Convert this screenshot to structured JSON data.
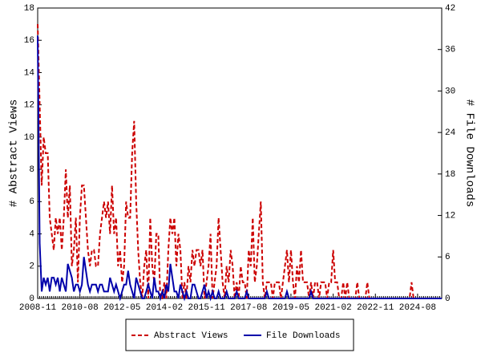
{
  "chart_data": {
    "type": "line",
    "x": [
      "2008-11",
      "2008-12",
      "2009-01",
      "2009-02",
      "2009-03",
      "2009-04",
      "2009-05",
      "2009-06",
      "2009-07",
      "2009-08",
      "2009-09",
      "2009-10",
      "2009-11",
      "2009-12",
      "2010-01",
      "2010-02",
      "2010-03",
      "2010-04",
      "2010-05",
      "2010-06",
      "2010-07",
      "2010-08",
      "2010-09",
      "2010-10",
      "2010-11",
      "2010-12",
      "2011-01",
      "2011-02",
      "2011-03",
      "2011-04",
      "2011-05",
      "2011-06",
      "2011-07",
      "2011-08",
      "2011-09",
      "2011-10",
      "2011-11",
      "2011-12",
      "2012-01",
      "2012-02",
      "2012-03",
      "2012-04",
      "2012-05",
      "2012-06",
      "2012-07",
      "2012-08",
      "2012-09",
      "2012-10",
      "2012-11",
      "2012-12",
      "2013-01",
      "2013-02",
      "2013-03",
      "2013-04",
      "2013-05",
      "2013-06",
      "2013-07",
      "2013-08",
      "2013-09",
      "2013-10",
      "2013-11",
      "2013-12",
      "2014-01",
      "2014-02",
      "2014-03",
      "2014-04",
      "2014-05",
      "2014-06",
      "2014-07",
      "2014-08",
      "2014-09",
      "2014-10",
      "2014-11",
      "2014-12",
      "2015-01",
      "2015-02",
      "2015-03",
      "2015-04",
      "2015-05",
      "2015-06",
      "2015-07",
      "2015-08",
      "2015-09",
      "2015-10",
      "2015-11",
      "2015-12",
      "2016-01",
      "2016-02",
      "2016-03",
      "2016-04",
      "2016-05",
      "2016-06",
      "2016-07",
      "2016-08",
      "2016-09",
      "2016-10",
      "2016-11",
      "2016-12",
      "2017-01",
      "2017-02",
      "2017-03",
      "2017-04",
      "2017-05",
      "2017-06",
      "2017-07",
      "2017-08",
      "2017-09",
      "2017-10",
      "2017-11",
      "2017-12",
      "2018-01",
      "2018-02",
      "2018-03",
      "2018-04",
      "2018-05",
      "2018-06",
      "2018-07",
      "2018-08",
      "2018-09",
      "2018-10",
      "2018-11",
      "2018-12",
      "2019-01",
      "2019-02",
      "2019-03",
      "2019-04",
      "2019-05",
      "2019-06",
      "2019-07",
      "2019-08",
      "2019-09",
      "2019-10",
      "2019-11",
      "2019-12",
      "2020-01",
      "2020-02",
      "2020-03",
      "2020-04",
      "2020-05",
      "2020-06",
      "2020-07",
      "2020-08",
      "2020-09",
      "2020-10",
      "2020-11",
      "2020-12",
      "2021-01",
      "2021-02",
      "2021-03",
      "2021-04",
      "2021-05",
      "2021-06",
      "2021-07",
      "2021-08",
      "2021-09",
      "2021-10",
      "2021-11",
      "2021-12",
      "2022-01",
      "2022-02",
      "2022-03",
      "2022-04",
      "2022-05",
      "2022-06",
      "2022-07",
      "2022-08",
      "2022-09",
      "2022-10",
      "2022-11",
      "2022-12",
      "2023-01",
      "2023-02",
      "2023-03",
      "2023-04",
      "2023-05",
      "2023-06",
      "2023-07",
      "2023-08",
      "2023-09",
      "2023-10",
      "2023-11",
      "2023-12",
      "2024-01",
      "2024-02",
      "2024-03",
      "2024-04",
      "2024-05",
      "2024-06",
      "2024-07",
      "2024-08",
      "2024-09",
      "2024-10",
      "2024-11",
      "2024-12",
      "2025-01",
      "2025-02",
      "2025-03",
      "2025-04",
      "2025-05",
      "2025-06",
      "2025-07",
      "2025-08"
    ],
    "xticks": [
      "2008-11",
      "2010-08",
      "2012-05",
      "2014-02",
      "2015-11",
      "2017-08",
      "2019-05",
      "2021-02",
      "2022-11",
      "2024-08"
    ],
    "ylabel": "# Abstract Views",
    "y2label": "# File Downloads",
    "ylim": [
      0,
      18
    ],
    "yticks": [
      0,
      2,
      4,
      6,
      8,
      10,
      12,
      14,
      16,
      18
    ],
    "y2lim": [
      0,
      42
    ],
    "y2ticks": [
      0,
      6,
      12,
      18,
      24,
      30,
      36,
      42
    ],
    "legend": "bottom",
    "series": [
      {
        "name": "Abstract Views",
        "color": "#cc0000",
        "line_style": "dashed",
        "values": [
          17,
          12,
          7,
          10,
          9,
          9,
          5,
          4,
          3,
          5,
          4,
          5,
          3,
          5,
          8,
          5,
          7,
          2,
          3,
          5,
          1,
          5,
          7,
          7,
          5,
          3,
          2,
          3,
          3,
          2,
          2,
          4,
          5,
          6,
          5,
          6,
          4,
          7,
          4,
          5,
          2,
          3,
          1,
          2,
          6,
          5,
          5,
          9,
          11,
          6,
          3,
          1,
          0,
          2,
          3,
          0,
          5,
          2,
          1,
          4,
          4,
          0,
          0,
          1,
          0,
          3,
          5,
          4,
          5,
          2,
          4,
          3,
          0,
          1,
          0,
          2,
          1,
          3,
          2,
          3,
          3,
          2,
          3,
          0,
          1,
          2,
          4,
          0,
          1,
          2,
          5,
          3,
          1,
          0,
          2,
          1,
          3,
          2,
          0,
          1,
          0,
          2,
          1,
          1,
          0,
          3,
          2,
          5,
          1,
          2,
          4,
          6,
          1,
          0,
          1,
          1,
          1,
          0,
          1,
          1,
          1,
          0,
          1,
          2,
          3,
          1,
          3,
          1,
          0,
          2,
          1,
          3,
          1,
          1,
          1,
          0,
          1,
          0,
          1,
          1,
          0,
          1,
          1,
          1,
          0,
          1,
          1,
          3,
          1,
          1,
          0,
          0,
          1,
          0,
          1,
          0,
          0,
          0,
          0,
          1,
          0,
          0,
          0,
          0,
          1,
          0,
          0,
          0,
          0,
          0,
          0,
          0,
          0,
          0,
          0,
          0,
          0,
          0,
          0,
          0,
          0,
          0,
          0,
          0,
          0,
          0,
          1,
          0,
          0,
          0,
          0,
          0,
          0,
          0,
          0,
          0,
          0,
          0,
          0,
          0,
          0,
          0
        ]
      },
      {
        "name": "File Downloads",
        "color": "#0000aa",
        "line_style": "solid",
        "axis": "y2",
        "values": [
          38,
          8,
          1,
          3,
          2,
          3,
          1,
          3,
          3,
          2,
          3,
          1,
          3,
          2,
          1,
          5,
          4,
          3,
          1,
          2,
          2,
          1,
          2,
          6,
          4,
          2,
          1,
          2,
          2,
          2,
          1,
          2,
          2,
          1,
          1,
          1,
          3,
          2,
          1,
          2,
          1,
          0,
          1,
          2,
          2,
          4,
          2,
          1,
          0,
          3,
          2,
          1,
          0,
          0,
          1,
          2,
          1,
          0,
          3,
          1,
          1,
          0,
          1,
          0,
          2,
          1,
          5,
          3,
          1,
          1,
          0,
          2,
          1,
          0,
          1,
          0,
          0,
          2,
          2,
          1,
          0,
          0,
          1,
          2,
          0,
          1,
          0,
          1,
          0,
          0,
          1,
          0,
          0,
          0,
          1,
          0,
          0,
          0,
          0,
          1,
          0,
          0,
          0,
          0,
          1,
          0,
          0,
          0,
          0,
          0,
          0,
          0,
          0,
          0,
          1,
          0,
          0,
          0,
          0,
          0,
          0,
          0,
          0,
          0,
          1,
          0,
          0,
          0,
          0,
          0,
          0,
          0,
          0,
          0,
          0,
          0,
          1,
          0,
          0,
          0,
          0,
          0,
          0,
          0,
          0,
          0,
          0,
          0,
          0,
          0,
          0,
          0,
          0,
          0,
          0,
          0,
          0,
          0,
          0,
          0,
          0,
          0,
          0,
          0,
          0,
          0,
          0,
          0,
          0,
          0,
          0,
          0,
          0,
          0,
          0,
          0,
          0,
          0,
          0,
          0,
          0,
          0,
          0,
          0,
          0,
          0,
          0,
          0,
          0,
          0,
          0,
          0,
          0,
          0,
          0,
          0,
          0,
          0,
          0,
          0,
          0,
          0
        ]
      }
    ]
  }
}
